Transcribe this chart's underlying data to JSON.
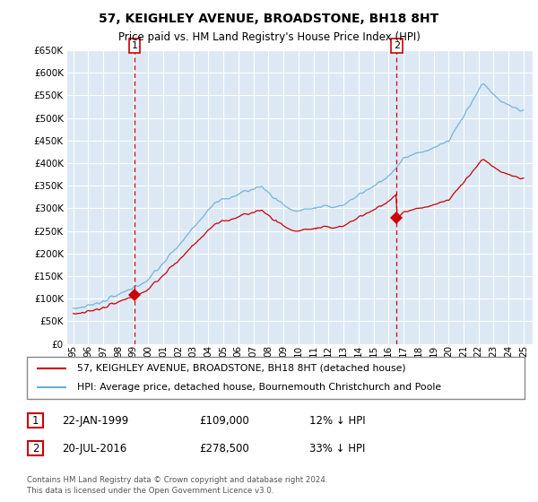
{
  "title": "57, KEIGHLEY AVENUE, BROADSTONE, BH18 8HT",
  "subtitle": "Price paid vs. HM Land Registry's House Price Index (HPI)",
  "legend_line1": "57, KEIGHLEY AVENUE, BROADSTONE, BH18 8HT (detached house)",
  "legend_line2": "HPI: Average price, detached house, Bournemouth Christchurch and Poole",
  "footnote": "Contains HM Land Registry data © Crown copyright and database right 2024.\nThis data is licensed under the Open Government Licence v3.0.",
  "table_row1": [
    "1",
    "22-JAN-1999",
    "£109,000",
    "12% ↓ HPI"
  ],
  "table_row2": [
    "2",
    "20-JUL-2016",
    "£278,500",
    "33% ↓ HPI"
  ],
  "hpi_color": "#6baed6",
  "sale_color": "#cc0000",
  "sale1_date": 1999.07,
  "sale2_date": 2016.55,
  "sale1_price": 109000,
  "sale2_price": 278500,
  "ylim": [
    0,
    650000
  ],
  "yticks": [
    0,
    50000,
    100000,
    150000,
    200000,
    250000,
    300000,
    350000,
    400000,
    450000,
    500000,
    550000,
    600000,
    650000
  ],
  "background_color": "#ffffff",
  "plot_bg_color": "#dce9f5",
  "grid_color": "#ffffff"
}
